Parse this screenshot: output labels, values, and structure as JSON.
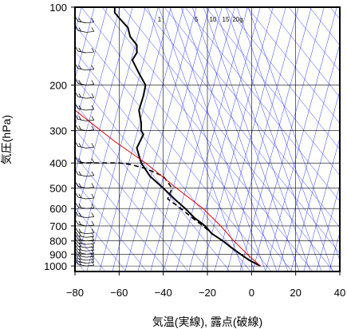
{
  "chart_data": {
    "type": "line",
    "title": "",
    "xlabel": "気温(実線), 露点(破線)",
    "ylabel": "気圧(hPa)",
    "xlim": [
      -80,
      40
    ],
    "ylim_pressure_hpa": [
      1050,
      100
    ],
    "y_scale": "log",
    "grid": true,
    "x_ticks": [
      -80,
      -60,
      -40,
      -20,
      0,
      20,
      40
    ],
    "y_ticks": [
      100,
      200,
      300,
      400,
      500,
      600,
      700,
      800,
      900,
      1000
    ],
    "mixing_ratio_labels": [
      "1",
      "5",
      "10",
      "15",
      "20g"
    ],
    "colors": {
      "temperature": "#000000",
      "dewpoint": "#000000",
      "lifted_parcel": "#dd0000",
      "reference_lines": "#2f3cff",
      "grid": "#000000"
    },
    "series": [
      {
        "name": "気温",
        "style": "solid",
        "points": [
          [
            4,
            1000
          ],
          [
            -1,
            950
          ],
          [
            -5,
            900
          ],
          [
            -9,
            850
          ],
          [
            -13,
            800
          ],
          [
            -18,
            750
          ],
          [
            -21,
            700
          ],
          [
            -26,
            650
          ],
          [
            -30,
            600
          ],
          [
            -35,
            550
          ],
          [
            -40,
            500
          ],
          [
            -46,
            450
          ],
          [
            -50,
            400
          ],
          [
            -52,
            350
          ],
          [
            -49,
            310
          ],
          [
            -50,
            300
          ],
          [
            -50,
            280
          ],
          [
            -51,
            250
          ],
          [
            -49,
            220
          ],
          [
            -48,
            200
          ],
          [
            -51,
            180
          ],
          [
            -54,
            160
          ],
          [
            -52,
            150
          ],
          [
            -52,
            140
          ],
          [
            -55,
            130
          ],
          [
            -56,
            120
          ],
          [
            -60,
            110
          ],
          [
            -62,
            105
          ],
          [
            -62,
            100
          ]
        ]
      },
      {
        "name": "露点",
        "style": "dashed",
        "points": [
          [
            4,
            1000
          ],
          [
            -1,
            950
          ],
          [
            -5,
            900
          ],
          [
            -9,
            850
          ],
          [
            -13,
            800
          ],
          [
            -18,
            750
          ],
          [
            -22,
            700
          ],
          [
            -27,
            650
          ],
          [
            -32,
            600
          ],
          [
            -38,
            550
          ],
          [
            -36,
            500
          ],
          [
            -40,
            450
          ],
          [
            -48,
            420
          ],
          [
            -55,
            405
          ],
          [
            -60,
            400
          ],
          [
            -75,
            400
          ],
          [
            -78,
            400
          ]
        ]
      },
      {
        "name": "持ち上げ曲線",
        "style": "solid-red",
        "points": [
          [
            4,
            1000
          ],
          [
            -2,
            900
          ],
          [
            -8,
            800
          ],
          [
            -14,
            700
          ],
          [
            -22,
            600
          ],
          [
            -34,
            500
          ],
          [
            -48,
            400
          ],
          [
            -62,
            330
          ],
          [
            -80,
            250
          ]
        ]
      }
    ],
    "wind_barbs_column_x": -75,
    "wind_barb_levels_hpa": [
      1000,
      975,
      950,
      925,
      900,
      875,
      850,
      825,
      800,
      775,
      750,
      700,
      650,
      600,
      550,
      500,
      450,
      400,
      350,
      300,
      275,
      250,
      225,
      200,
      175,
      150,
      125,
      115,
      100
    ]
  }
}
